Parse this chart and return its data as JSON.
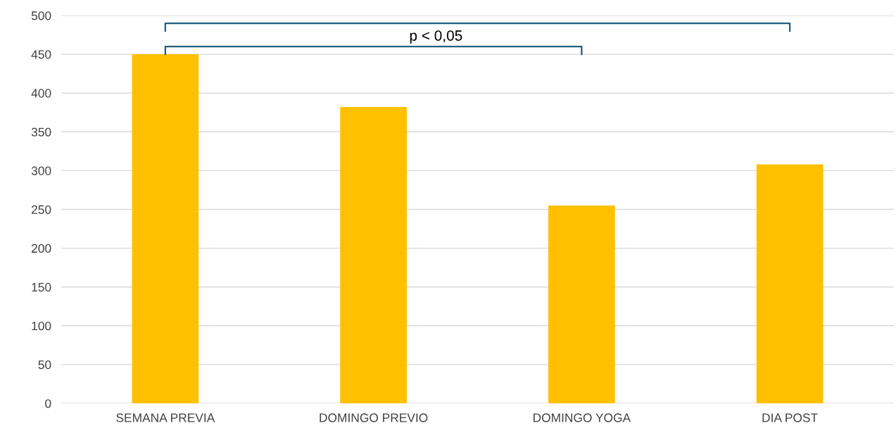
{
  "chart_data": {
    "type": "bar",
    "categories": [
      "SEMANA PREVIA",
      "DOMINGO PREVIO",
      "DOMINGO YOGA",
      "DIA POST"
    ],
    "values": [
      450,
      382,
      255,
      308
    ],
    "color": "#ffc000",
    "ylim": [
      0,
      500
    ],
    "yticks": [
      0,
      50,
      100,
      150,
      200,
      250,
      300,
      350,
      400,
      450,
      500
    ],
    "grid": "y",
    "annotations": [
      "p < 0,05"
    ]
  }
}
